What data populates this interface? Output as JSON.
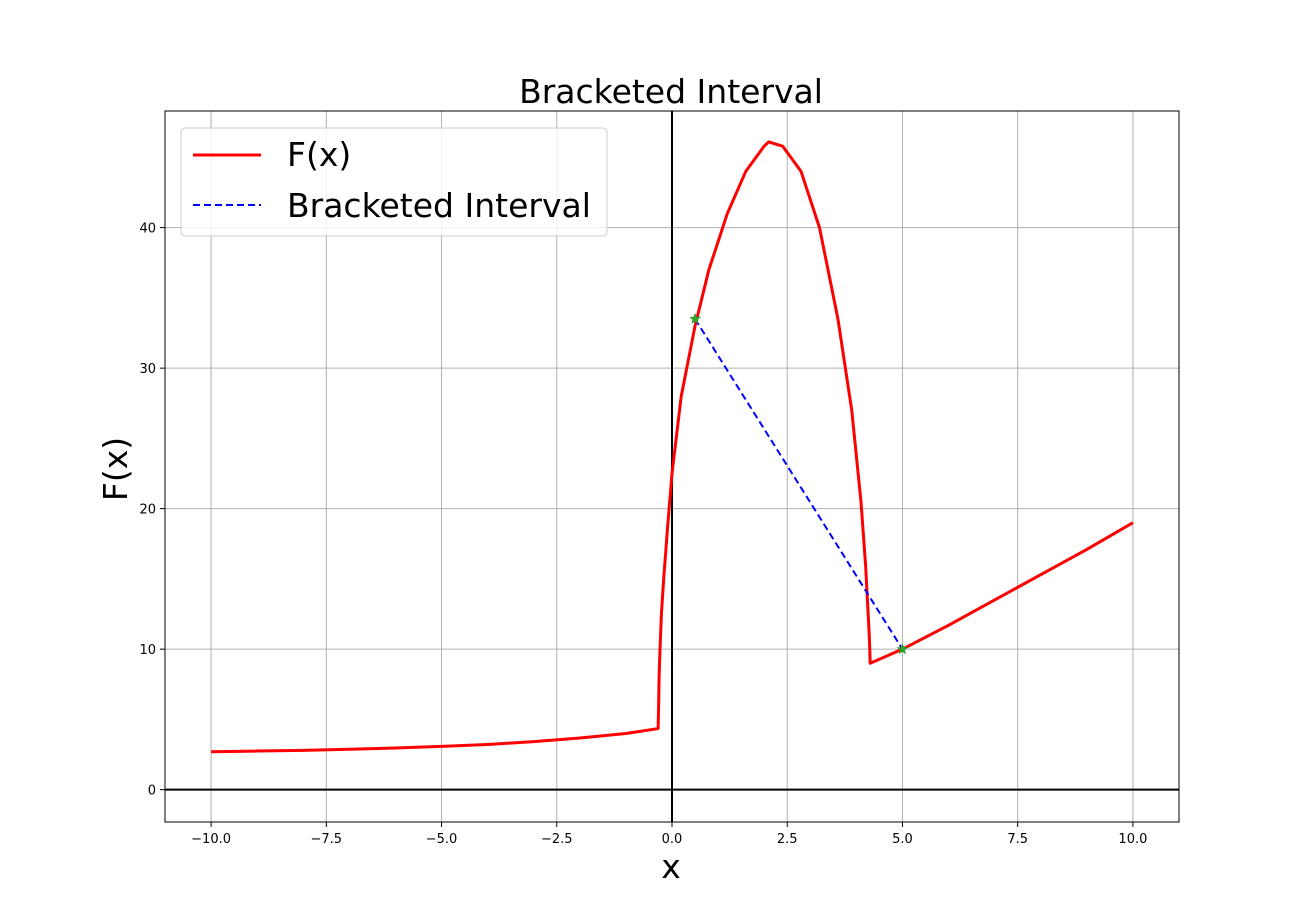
{
  "chart_data": {
    "type": "line",
    "title": "Bracketed Interval",
    "xlabel": "x",
    "ylabel": "F(x)",
    "xlim": [
      -11,
      11
    ],
    "ylim": [
      -2.3,
      48.3
    ],
    "grid": true,
    "legend_position": "top-left",
    "x_ticks": [
      -10.0,
      -7.5,
      -5.0,
      -2.5,
      0.0,
      2.5,
      5.0,
      7.5,
      10.0
    ],
    "x_tick_labels": [
      "−10.0",
      "−7.5",
      "−5.0",
      "−2.5",
      "0.0",
      "2.5",
      "5.0",
      "7.5",
      "10.0"
    ],
    "y_ticks": [
      0,
      10,
      20,
      30,
      40
    ],
    "y_tick_labels": [
      "0",
      "10",
      "20",
      "30",
      "40"
    ],
    "series": [
      {
        "name": "F(x)",
        "color": "#ff0000",
        "style": "solid",
        "points": [
          [
            -10.0,
            2.7
          ],
          [
            -9.0,
            2.75
          ],
          [
            -8.0,
            2.8
          ],
          [
            -7.0,
            2.88
          ],
          [
            -6.0,
            2.97
          ],
          [
            -5.0,
            3.08
          ],
          [
            -4.0,
            3.22
          ],
          [
            -3.0,
            3.42
          ],
          [
            -2.0,
            3.68
          ],
          [
            -1.0,
            4.0
          ],
          [
            -0.3,
            4.35
          ],
          [
            -0.3,
            4.5
          ],
          [
            -0.29,
            6.0
          ],
          [
            -0.28,
            8.0
          ],
          [
            -0.26,
            10.0
          ],
          [
            -0.23,
            12.5
          ],
          [
            -0.18,
            15.0
          ],
          [
            -0.1,
            18.5
          ],
          [
            0.0,
            22.5
          ],
          [
            0.2,
            28.0
          ],
          [
            0.5,
            33.0
          ],
          [
            0.8,
            37.0
          ],
          [
            1.2,
            41.0
          ],
          [
            1.6,
            44.0
          ],
          [
            2.0,
            45.8
          ],
          [
            2.1,
            46.1
          ],
          [
            2.4,
            45.8
          ],
          [
            2.8,
            44.0
          ],
          [
            3.2,
            40.0
          ],
          [
            3.6,
            33.5
          ],
          [
            3.9,
            27.0
          ],
          [
            4.1,
            20.5
          ],
          [
            4.2,
            16.0
          ],
          [
            4.28,
            11.0
          ],
          [
            4.3,
            9.0
          ],
          [
            5.0,
            10.0
          ],
          [
            6.0,
            11.7
          ],
          [
            7.0,
            13.5
          ],
          [
            8.0,
            15.3
          ],
          [
            9.0,
            17.1
          ],
          [
            10.0,
            19.0
          ]
        ]
      },
      {
        "name": "Bracketed Interval",
        "color": "#0000ff",
        "style": "dashed",
        "points": [
          [
            0.5,
            33.5
          ],
          [
            5.0,
            10.0
          ]
        ]
      }
    ],
    "markers": [
      {
        "x": 0.5,
        "y": 33.5,
        "symbol": "star",
        "color": "#2ca02c"
      },
      {
        "x": 5.0,
        "y": 10.0,
        "symbol": "star",
        "color": "#2ca02c"
      }
    ],
    "reference_lines": {
      "x0": true,
      "y0": true
    }
  }
}
